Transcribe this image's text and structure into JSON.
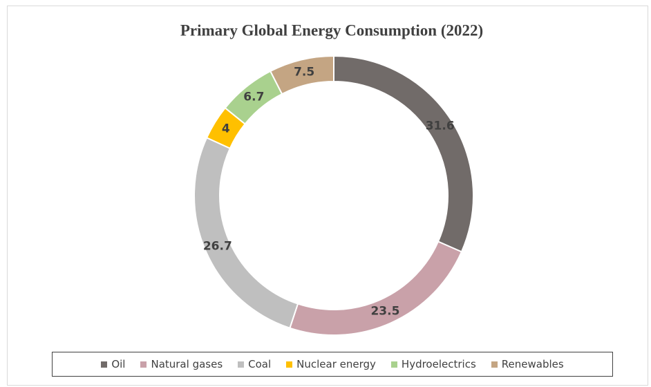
{
  "chart_data": {
    "type": "doughnut",
    "title": "Primary Global Energy Consumption (2022)",
    "categories": [
      "Oil",
      "Natural gases",
      "Coal",
      "Nuclear energy",
      "Hydroelectrics",
      "Renewables"
    ],
    "values": [
      31.6,
      23.5,
      26.7,
      4,
      6.7,
      7.5
    ],
    "colors": [
      "#716b69",
      "#c9a1a9",
      "#bfbfbf",
      "#ffc000",
      "#a9d18e",
      "#c4a583"
    ],
    "legend": "bottom"
  }
}
